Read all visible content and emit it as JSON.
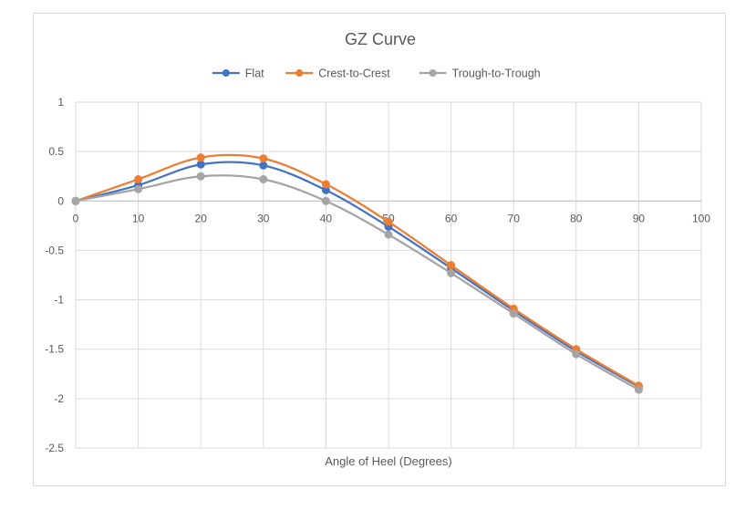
{
  "chart_data": {
    "type": "line",
    "title": "GZ Curve",
    "xlabel": "Angle of Heel (Degrees)",
    "ylabel": "",
    "xlim": [
      0,
      100
    ],
    "ylim": [
      -2.5,
      1
    ],
    "x_ticks": [
      "0",
      "10",
      "20",
      "30",
      "40",
      "50",
      "60",
      "70",
      "80",
      "90",
      "100"
    ],
    "y_ticks": [
      "1",
      "0.5",
      "0",
      "-0.5",
      "-1",
      "-1.5",
      "-2",
      "-2.5"
    ],
    "grid": true,
    "smooth": true,
    "legend_position": "top",
    "x": [
      0,
      10,
      20,
      30,
      40,
      50,
      60,
      70,
      80,
      90
    ],
    "series": [
      {
        "name": "Flat",
        "color": "#4472C4",
        "values": [
          0,
          0.16,
          0.37,
          0.36,
          0.11,
          -0.26,
          -0.68,
          -1.11,
          -1.52,
          -1.88
        ]
      },
      {
        "name": "Crest-to-Crest",
        "color": "#ED7D31",
        "values": [
          0,
          0.22,
          0.44,
          0.43,
          0.17,
          -0.21,
          -0.65,
          -1.09,
          -1.5,
          -1.87
        ]
      },
      {
        "name": "Trough-to-Trough",
        "color": "#A5A5A5",
        "values": [
          0,
          0.12,
          0.25,
          0.22,
          0.0,
          -0.34,
          -0.73,
          -1.14,
          -1.55,
          -1.91
        ]
      }
    ]
  }
}
